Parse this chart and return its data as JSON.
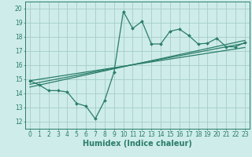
{
  "title": "",
  "xlabel": "Humidex (Indice chaleur)",
  "xlim": [
    -0.5,
    23.5
  ],
  "ylim": [
    11.5,
    20.5
  ],
  "xticks": [
    0,
    1,
    2,
    3,
    4,
    5,
    6,
    7,
    8,
    9,
    10,
    11,
    12,
    13,
    14,
    15,
    16,
    17,
    18,
    19,
    20,
    21,
    22,
    23
  ],
  "yticks": [
    12,
    13,
    14,
    15,
    16,
    17,
    18,
    19,
    20
  ],
  "main_line_x": [
    0,
    1,
    2,
    3,
    4,
    5,
    6,
    7,
    8,
    9,
    10,
    11,
    12,
    13,
    14,
    15,
    16,
    17,
    18,
    19,
    20,
    21,
    22,
    23
  ],
  "main_line_y": [
    14.9,
    14.6,
    14.2,
    14.2,
    14.1,
    13.3,
    13.1,
    12.2,
    13.5,
    15.5,
    19.8,
    18.6,
    19.1,
    17.5,
    17.5,
    18.4,
    18.55,
    18.1,
    17.5,
    17.55,
    17.9,
    17.3,
    17.3,
    17.6
  ],
  "trend1_x": [
    0,
    23
  ],
  "trend1_y": [
    14.9,
    17.25
  ],
  "trend2_x": [
    0,
    23
  ],
  "trend2_y": [
    14.65,
    17.55
  ],
  "trend3_x": [
    0,
    23
  ],
  "trend3_y": [
    14.45,
    17.75
  ],
  "line_color": "#2a7d6a",
  "background_color": "#ceecea",
  "grid_color": "#a5cdc9",
  "tick_fontsize": 5.5,
  "label_fontsize": 7.0
}
